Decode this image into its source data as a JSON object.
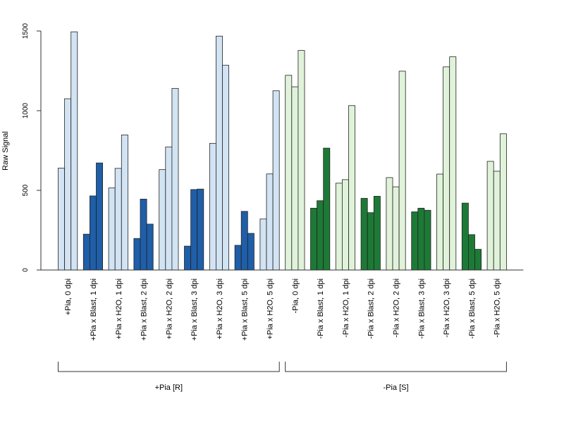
{
  "chart_data": {
    "type": "bar",
    "ylabel": "Raw Signal",
    "ylim": [
      0,
      1500
    ],
    "yticks": [
      0,
      500,
      1000,
      1500
    ],
    "grid": false,
    "legend": "none",
    "colors": {
      "blue_light": "#d2e3f3",
      "blue_dark": "#1f5ea8",
      "green_light": "#e0f3da",
      "green_dark": "#1d7a36",
      "bar_border": "#222222",
      "axis": "#333333"
    },
    "categories": [
      {
        "label": "+Pia, 0 dpi",
        "values": [
          640,
          1075,
          1495
        ],
        "color": "blue_light"
      },
      {
        "label": "+Pia x Blast, 1 dpi",
        "values": [
          225,
          465,
          672
        ],
        "color": "blue_dark"
      },
      {
        "label": "+Pia x H2O, 1 dpi",
        "values": [
          515,
          638,
          848
        ],
        "color": "blue_light"
      },
      {
        "label": "+Pia x Blast, 2 dpi",
        "values": [
          198,
          445,
          288
        ],
        "color": "blue_dark"
      },
      {
        "label": "+Pia x H2O, 2 dpi",
        "values": [
          630,
          772,
          1140
        ],
        "color": "blue_light"
      },
      {
        "label": "+Pia x Blast, 3 dpi",
        "values": [
          150,
          505,
          508
        ],
        "color": "blue_dark"
      },
      {
        "label": "+Pia x H2O, 3 dpi",
        "values": [
          795,
          1468,
          1285
        ],
        "color": "blue_light"
      },
      {
        "label": "+Pia x Blast, 5 dpi",
        "values": [
          155,
          368,
          230
        ],
        "color": "blue_dark"
      },
      {
        "label": "+Pia x H2O, 5 dpi",
        "values": [
          320,
          603,
          1125
        ],
        "color": "blue_light"
      },
      {
        "label": "-Pia, 0 dpi",
        "values": [
          1222,
          1150,
          1378
        ],
        "color": "green_light"
      },
      {
        "label": "-Pia x Blast, 1 dpi",
        "values": [
          388,
          435,
          765
        ],
        "color": "green_dark"
      },
      {
        "label": "-Pia x H2O, 1 dpi",
        "values": [
          545,
          567,
          1032
        ],
        "color": "green_light"
      },
      {
        "label": "-Pia x Blast, 2 dpi",
        "values": [
          450,
          360,
          463
        ],
        "color": "green_dark"
      },
      {
        "label": "-Pia x H2O, 2 dpi",
        "values": [
          580,
          522,
          1248
        ],
        "color": "green_light"
      },
      {
        "label": "-Pia x Blast, 3 dpi",
        "values": [
          365,
          388,
          375
        ],
        "color": "green_dark"
      },
      {
        "label": "-Pia x H2O, 3 dpi",
        "values": [
          602,
          1275,
          1338
        ],
        "color": "green_light"
      },
      {
        "label": "-Pia x Blast, 5 dpi",
        "values": [
          420,
          222,
          130
        ],
        "color": "green_dark"
      },
      {
        "label": "-Pia x H2O, 5 dpi",
        "values": [
          682,
          620,
          855
        ],
        "color": "green_light"
      }
    ],
    "groups": [
      {
        "label": "+Pia [R]",
        "categories": [
          "+Pia, 0 dpi",
          "+Pia x H2O, 5 dpi"
        ]
      },
      {
        "label": "-Pia [S]",
        "categories": [
          "-Pia, 0 dpi",
          "-Pia x H2O, 5 dpi"
        ]
      }
    ]
  }
}
